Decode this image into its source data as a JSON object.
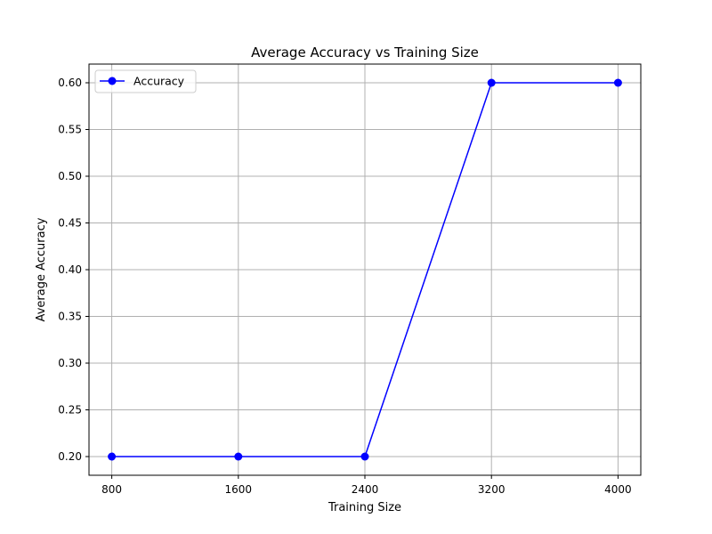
{
  "chart_data": {
    "type": "line",
    "title": "Average Accuracy vs Training Size",
    "xlabel": "Training Size",
    "ylabel": "Average Accuracy",
    "x": [
      800,
      1600,
      2400,
      3200,
      4000
    ],
    "x_tick_labels": [
      "800",
      "1600",
      "2400",
      "3200",
      "4000"
    ],
    "y_ticks": [
      0.2,
      0.25,
      0.3,
      0.35,
      0.4,
      0.45,
      0.5,
      0.55,
      0.6
    ],
    "y_tick_labels": [
      "0.20",
      "0.25",
      "0.30",
      "0.35",
      "0.40",
      "0.45",
      "0.50",
      "0.55",
      "0.60"
    ],
    "xlim": [
      656,
      4144
    ],
    "ylim": [
      0.18,
      0.62
    ],
    "grid": true,
    "legend_position": "top-left",
    "series": [
      {
        "name": "Accuracy",
        "color": "#0000ff",
        "marker": "circle",
        "values": [
          0.2,
          0.2,
          0.2,
          0.6,
          0.6
        ]
      }
    ]
  }
}
